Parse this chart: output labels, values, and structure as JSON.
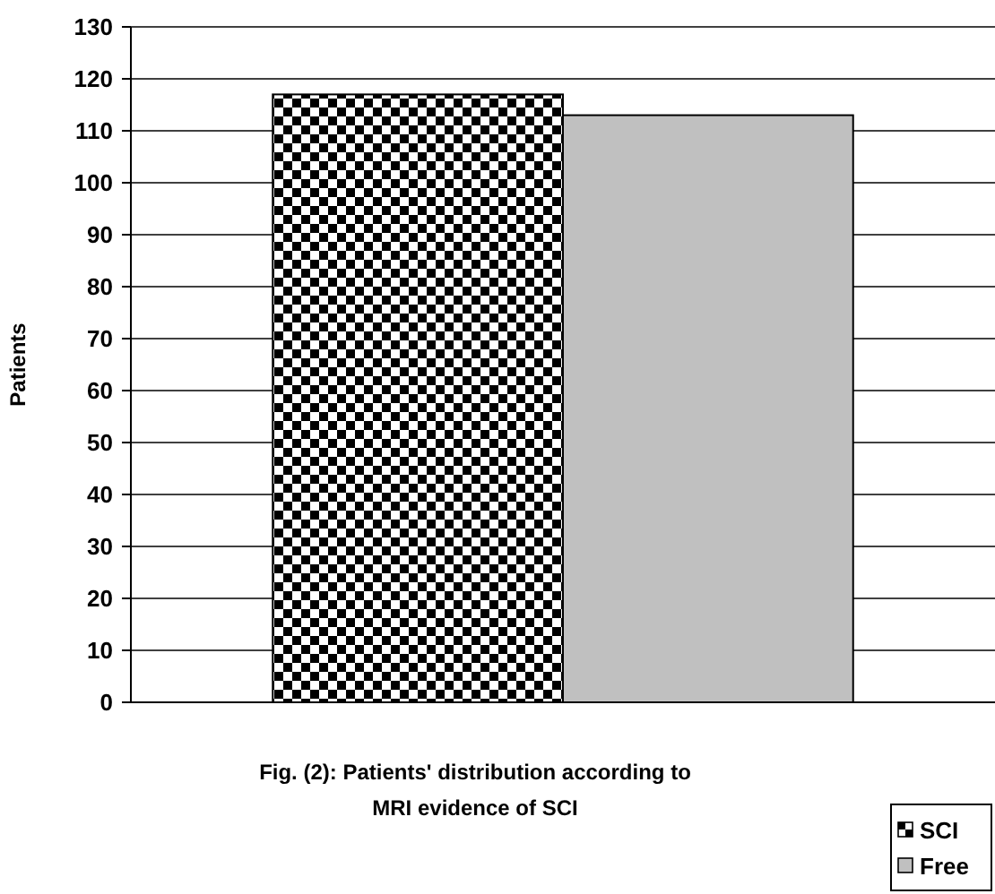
{
  "chart_data": {
    "type": "bar",
    "title": "Fig. (2): Patients' distribution according to MRI evidence of SCI",
    "ylabel": "Patients",
    "categories": [
      null
    ],
    "series": [
      {
        "name": "SCI",
        "color": "#000000",
        "values": [
          117
        ]
      },
      {
        "name": "Free",
        "color": "#c0c0c0",
        "values": [
          113
        ]
      }
    ],
    "ylim": [
      0,
      130
    ],
    "yticks": [
      0,
      10,
      20,
      30,
      40,
      50,
      60,
      70,
      80,
      90,
      100,
      110,
      120,
      130
    ],
    "grid": "y",
    "legend": "bottom right"
  }
}
